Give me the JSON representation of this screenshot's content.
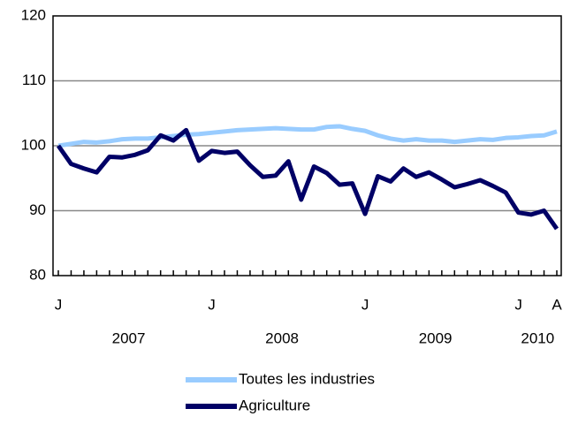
{
  "chart_data": {
    "type": "line",
    "categories": [
      "J",
      null,
      null,
      null,
      null,
      null,
      null,
      null,
      null,
      null,
      null,
      null,
      "J",
      null,
      null,
      null,
      null,
      null,
      null,
      null,
      null,
      null,
      null,
      null,
      "J",
      null,
      null,
      null,
      null,
      null,
      null,
      null,
      null,
      null,
      null,
      null,
      "J",
      null,
      null,
      "A"
    ],
    "year_labels": [
      "2007",
      "2008",
      "2009",
      "2010"
    ],
    "series": [
      {
        "name": "Toutes les industries",
        "color": "#99ccff",
        "values": [
          100,
          100.3,
          100.6,
          100.5,
          100.7,
          101,
          101.1,
          101.1,
          101.3,
          101.5,
          101.7,
          101.8,
          102,
          102.2,
          102.4,
          102.5,
          102.6,
          102.7,
          102.6,
          102.5,
          102.5,
          102.9,
          103,
          102.6,
          102.3,
          101.6,
          101.1,
          100.8,
          101,
          100.8,
          100.8,
          100.6,
          100.8,
          101,
          100.9,
          101.2,
          101.3,
          101.5,
          101.6,
          102.2
        ]
      },
      {
        "name": "Agriculture",
        "color": "#000066",
        "values": [
          100,
          97.2,
          96.5,
          95.9,
          98.3,
          98.2,
          98.6,
          99.3,
          101.6,
          100.8,
          102.4,
          97.7,
          99.2,
          98.9,
          99.1,
          97,
          95.2,
          95.4,
          97.6,
          91.7,
          96.8,
          95.8,
          94,
          94.2,
          89.5,
          95.3,
          94.5,
          96.5,
          95.2,
          95.9,
          94.8,
          93.6,
          94.1,
          94.7,
          93.8,
          92.8,
          89.7,
          89.4,
          90,
          87.2
        ]
      }
    ],
    "ylim": [
      80,
      120
    ],
    "yticks": [
      80,
      90,
      100,
      110,
      120
    ],
    "grid": true
  }
}
